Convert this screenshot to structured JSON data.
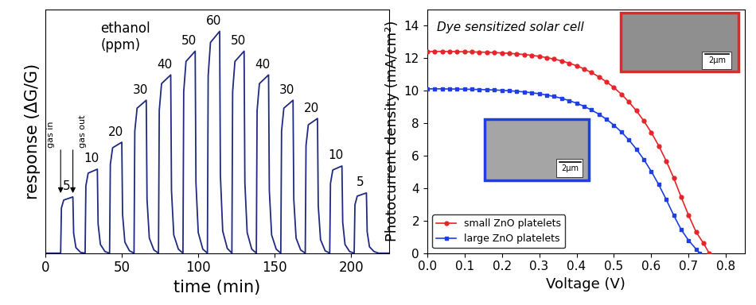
{
  "chart_data": [
    {
      "type": "line",
      "xlabel": "time (min)",
      "ylabel": "response (ΔG/G)",
      "note": "ethanol\n(ppm)",
      "xlim": [
        0,
        225
      ],
      "xticks": [
        0,
        50,
        100,
        150,
        200
      ],
      "ylim": [
        0,
        308
      ],
      "tick_labels": "x",
      "color": "#1f2a80",
      "x": [
        0,
        10,
        10.5,
        12,
        18,
        18.5,
        20,
        23,
        26,
        26.5,
        28,
        34,
        34.5,
        36,
        39,
        42,
        42.5,
        44,
        50,
        50.5,
        52,
        55,
        58,
        58.5,
        60,
        66,
        66.5,
        68,
        71,
        74,
        74.5,
        76,
        82,
        82.5,
        84,
        87,
        90,
        90.5,
        92,
        98,
        98.5,
        100,
        103,
        106,
        106.5,
        108,
        114,
        114.5,
        116,
        119,
        122,
        122.5,
        124,
        130,
        130.5,
        132,
        135,
        138,
        138.5,
        140,
        146,
        146.5,
        148,
        151,
        154,
        154.5,
        156,
        162,
        162.5,
        164,
        167,
        170,
        170.5,
        172,
        178,
        178.5,
        180,
        183,
        186,
        186.5,
        188,
        194,
        194.5,
        196,
        199,
        202,
        202.5,
        204,
        210,
        210.5,
        212,
        215,
        218,
        225
      ],
      "values": [
        0,
        0,
        57,
        67,
        71,
        25,
        7,
        1,
        0,
        85,
        101,
        106,
        37,
        11,
        2,
        0,
        112,
        133,
        140,
        49,
        14,
        3,
        0,
        154,
        183,
        193,
        68,
        19,
        4,
        0,
        180,
        214,
        225,
        79,
        23,
        5,
        0,
        204,
        242,
        255,
        89,
        26,
        5,
        0,
        224,
        266,
        280,
        98,
        28,
        6,
        0,
        204,
        242,
        255,
        89,
        26,
        5,
        0,
        180,
        214,
        225,
        79,
        23,
        5,
        0,
        154,
        183,
        193,
        68,
        19,
        4,
        0,
        136,
        162,
        170,
        60,
        17,
        3,
        0,
        88,
        105,
        110,
        39,
        11,
        2,
        0,
        61,
        72,
        76,
        27,
        8,
        2,
        0,
        0
      ],
      "annotations": [
        {
          "text": "5",
          "x": 14,
          "y": 71
        },
        {
          "text": "10",
          "x": 30,
          "y": 106
        },
        {
          "text": "20",
          "x": 46,
          "y": 140
        },
        {
          "text": "30",
          "x": 62,
          "y": 193
        },
        {
          "text": "40",
          "x": 78,
          "y": 225
        },
        {
          "text": "50",
          "x": 94,
          "y": 255
        },
        {
          "text": "60",
          "x": 110,
          "y": 280
        },
        {
          "text": "50",
          "x": 126,
          "y": 255
        },
        {
          "text": "40",
          "x": 142,
          "y": 225
        },
        {
          "text": "30",
          "x": 158,
          "y": 193
        },
        {
          "text": "20",
          "x": 174,
          "y": 170
        },
        {
          "text": "10",
          "x": 190,
          "y": 110
        },
        {
          "text": "5",
          "x": 206,
          "y": 76
        }
      ],
      "gas_markers": [
        {
          "text": "gas in",
          "x": 10,
          "y": 71
        },
        {
          "text": "gas out",
          "x": 18,
          "y": 71
        }
      ]
    },
    {
      "type": "line",
      "text": "Dye sensitized solar cell",
      "xlabel": "Voltage (V)",
      "ylabel": "Photocurrent density (mA/cm²)",
      "xlim": [
        0,
        0.85
      ],
      "xticks": [
        0.0,
        0.1,
        0.2,
        0.3,
        0.4,
        0.5,
        0.6,
        0.7,
        0.8
      ],
      "ylim": [
        0,
        15
      ],
      "yticks": [
        0,
        2,
        4,
        6,
        8,
        10,
        12,
        14
      ],
      "legend": "lower left",
      "series": [
        {
          "name": "small ZnO platelets",
          "color": "#e8232a",
          "marker": "circle",
          "x": [
            0,
            0.02,
            0.04,
            0.06,
            0.08,
            0.1,
            0.12,
            0.14,
            0.16,
            0.18,
            0.2,
            0.22,
            0.24,
            0.26,
            0.28,
            0.3,
            0.32,
            0.34,
            0.36,
            0.38,
            0.4,
            0.42,
            0.44,
            0.46,
            0.48,
            0.5,
            0.52,
            0.54,
            0.56,
            0.58,
            0.6,
            0.62,
            0.64,
            0.66,
            0.68,
            0.7,
            0.72,
            0.74,
            0.755
          ],
          "values": [
            12.4,
            12.4,
            12.4,
            12.4,
            12.39,
            12.38,
            12.37,
            12.36,
            12.35,
            12.33,
            12.31,
            12.28,
            12.25,
            12.21,
            12.16,
            12.1,
            12.02,
            11.93,
            11.82,
            11.68,
            11.52,
            11.33,
            11.1,
            10.84,
            10.53,
            10.18,
            9.77,
            9.3,
            8.76,
            8.13,
            7.42,
            6.6,
            5.67,
            4.62,
            3.45,
            2.32,
            1.3,
            0.6,
            0
          ]
        },
        {
          "name": "large ZnO platelets",
          "color": "#1f3fe0",
          "marker": "square",
          "x": [
            0,
            0.02,
            0.04,
            0.06,
            0.08,
            0.1,
            0.12,
            0.14,
            0.16,
            0.18,
            0.2,
            0.22,
            0.24,
            0.26,
            0.28,
            0.3,
            0.32,
            0.34,
            0.36,
            0.38,
            0.4,
            0.42,
            0.44,
            0.46,
            0.48,
            0.5,
            0.52,
            0.54,
            0.56,
            0.58,
            0.6,
            0.62,
            0.64,
            0.66,
            0.68,
            0.7,
            0.72,
            0.73
          ],
          "values": [
            10.1,
            10.1,
            10.1,
            10.09,
            10.09,
            10.08,
            10.07,
            10.06,
            10.05,
            10.03,
            10.01,
            9.98,
            9.95,
            9.91,
            9.86,
            9.8,
            9.72,
            9.63,
            9.52,
            9.38,
            9.22,
            9.03,
            8.8,
            8.54,
            8.23,
            7.87,
            7.45,
            6.96,
            6.4,
            5.76,
            5.03,
            4.21,
            3.3,
            2.33,
            1.45,
            0.78,
            0.25,
            0
          ]
        }
      ],
      "insets": [
        {
          "series": "small ZnO platelets",
          "scale_bar": "2μm"
        },
        {
          "series": "large ZnO platelets",
          "scale_bar": "2μm"
        }
      ]
    }
  ]
}
